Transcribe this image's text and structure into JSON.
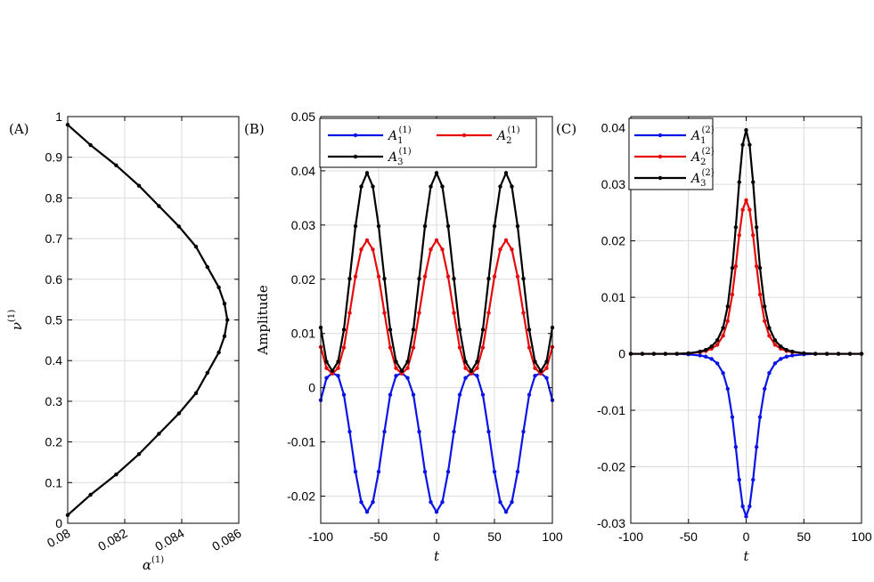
{
  "chart_data": [
    {
      "type": "line",
      "panel_label": "(A)",
      "xlabel": "α",
      "xlabel_sup": "(1)",
      "ylabel": "ν",
      "ylabel_sup": "(1)",
      "xlim": [
        0.08,
        0.086
      ],
      "ylim": [
        0,
        1
      ],
      "xticks": [
        "0.08",
        "0.082",
        "0.084",
        "0.086"
      ],
      "xtick_values": [
        0.08,
        0.082,
        0.084,
        0.086
      ],
      "yticks": [
        "0",
        "0.1",
        "0.2",
        "0.3",
        "0.4",
        "0.5",
        "0.6",
        "0.7",
        "0.8",
        "0.9",
        "1"
      ],
      "ytick_values": [
        0,
        0.1,
        0.2,
        0.3,
        0.4,
        0.5,
        0.6,
        0.7,
        0.8,
        0.9,
        1
      ],
      "grid": true,
      "series": [
        {
          "color": "#000000",
          "markers": true,
          "x": [
            0.08,
            0.0808,
            0.0817,
            0.0825,
            0.0832,
            0.0839,
            0.0845,
            0.0849,
            0.0853,
            0.0855,
            0.0856,
            0.0855,
            0.0853,
            0.0849,
            0.0845,
            0.0839,
            0.0832,
            0.0825,
            0.0817,
            0.0808,
            0.08
          ],
          "y": [
            0.02,
            0.07,
            0.12,
            0.17,
            0.22,
            0.27,
            0.32,
            0.37,
            0.42,
            0.46,
            0.5,
            0.54,
            0.58,
            0.63,
            0.68,
            0.73,
            0.78,
            0.83,
            0.88,
            0.93,
            0.98
          ]
        }
      ]
    },
    {
      "type": "line",
      "panel_label": "(B)",
      "xlabel": "t",
      "ylabel": "Amplitude",
      "xlim": [
        -100,
        100
      ],
      "ylim": [
        -0.025,
        0.05
      ],
      "xticks": [
        "-100",
        "-50",
        "0",
        "50",
        "100"
      ],
      "xtick_values": [
        -100,
        -50,
        0,
        50,
        100
      ],
      "yticks": [
        "-0.02",
        "-0.01",
        "0",
        "0.01",
        "0.02",
        "0.03",
        "0.04",
        "0.05"
      ],
      "ytick_values": [
        -0.02,
        -0.01,
        0,
        0.01,
        0.02,
        0.03,
        0.04,
        0.05
      ],
      "grid": true,
      "legend": "top",
      "series": [
        {
          "name": "A",
          "sub": "1",
          "sup": "(1)",
          "color": "#0a14e6",
          "x": [
            -100,
            -95,
            -90,
            -85,
            -80,
            -75,
            -70,
            -65,
            -60,
            -55,
            -50,
            -45,
            -40,
            -35,
            -30,
            -25,
            -20,
            -15,
            -10,
            -5,
            0,
            5,
            10,
            15,
            20,
            25,
            30,
            35,
            40,
            45,
            50,
            55,
            60,
            65,
            70,
            75,
            80,
            85,
            90,
            95,
            100
          ],
          "y": [
            -0.0023,
            0.0018,
            0.0027,
            0.0022,
            -0.0013,
            -0.0081,
            -0.0155,
            -0.0211,
            -0.0229,
            -0.0211,
            -0.0155,
            -0.0081,
            -0.0013,
            0.0022,
            0.0027,
            0.0018,
            -0.0013,
            -0.0081,
            -0.0155,
            -0.0211,
            -0.0229,
            -0.0211,
            -0.0155,
            -0.0081,
            -0.0013,
            0.0018,
            0.0027,
            0.0022,
            -0.0013,
            -0.0081,
            -0.0155,
            -0.0211,
            -0.0229,
            -0.0211,
            -0.0155,
            -0.0081,
            -0.0013,
            0.0022,
            0.0027,
            0.0018,
            -0.0023
          ]
        },
        {
          "name": "A",
          "sub": "2",
          "sup": "(1)",
          "color": "#e60a0a",
          "x": [
            -100,
            -95,
            -90,
            -85,
            -80,
            -75,
            -70,
            -65,
            -60,
            -55,
            -50,
            -45,
            -40,
            -35,
            -30,
            -25,
            -20,
            -15,
            -10,
            -5,
            0,
            5,
            10,
            15,
            20,
            25,
            30,
            35,
            40,
            45,
            50,
            55,
            60,
            65,
            70,
            75,
            80,
            85,
            90,
            95,
            100
          ],
          "y": [
            0.0075,
            0.0036,
            0.0026,
            0.0036,
            0.0074,
            0.0138,
            0.0205,
            0.0255,
            0.0272,
            0.0255,
            0.0205,
            0.0138,
            0.0074,
            0.0036,
            0.0026,
            0.0036,
            0.0074,
            0.0138,
            0.0205,
            0.0255,
            0.0272,
            0.0255,
            0.0205,
            0.0138,
            0.0074,
            0.0036,
            0.0026,
            0.0036,
            0.0074,
            0.0138,
            0.0205,
            0.0255,
            0.0272,
            0.0255,
            0.0205,
            0.0138,
            0.0074,
            0.0036,
            0.0026,
            0.0036,
            0.0075
          ]
        },
        {
          "name": "A",
          "sub": "3",
          "sup": "(1)",
          "color": "#000000",
          "x": [
            -100,
            -95,
            -90,
            -85,
            -80,
            -75,
            -70,
            -65,
            -60,
            -55,
            -50,
            -45,
            -40,
            -35,
            -30,
            -25,
            -20,
            -15,
            -10,
            -5,
            0,
            5,
            10,
            15,
            20,
            25,
            30,
            35,
            40,
            45,
            50,
            55,
            60,
            65,
            70,
            75,
            80,
            85,
            90,
            95,
            100
          ],
          "y": [
            0.0111,
            0.0048,
            0.0031,
            0.0048,
            0.0107,
            0.0201,
            0.0298,
            0.0371,
            0.0396,
            0.0371,
            0.0298,
            0.0201,
            0.0107,
            0.0048,
            0.0031,
            0.0048,
            0.0107,
            0.0201,
            0.0298,
            0.0371,
            0.0396,
            0.0371,
            0.0298,
            0.0201,
            0.0107,
            0.0048,
            0.0031,
            0.0048,
            0.0107,
            0.0201,
            0.0298,
            0.0371,
            0.0396,
            0.0371,
            0.0298,
            0.0201,
            0.0107,
            0.0048,
            0.0031,
            0.0048,
            0.0111
          ]
        }
      ]
    },
    {
      "type": "line",
      "panel_label": "(C)",
      "xlabel": "t",
      "ylabel": "",
      "xlim": [
        -100,
        100
      ],
      "ylim": [
        -0.03,
        0.042
      ],
      "xticks": [
        "-100",
        "-50",
        "0",
        "50",
        "100"
      ],
      "xtick_values": [
        -100,
        -50,
        0,
        50,
        100
      ],
      "yticks": [
        "-0.03",
        "-0.02",
        "-0.01",
        "0",
        "0.01",
        "0.02",
        "0.03",
        "0.04"
      ],
      "ytick_values": [
        -0.03,
        -0.02,
        -0.01,
        0,
        0.01,
        0.02,
        0.03,
        0.04
      ],
      "grid": true,
      "legend": "top-left",
      "series": [
        {
          "name": "A",
          "sub": "1",
          "sup": "(2)",
          "color": "#0a14e6",
          "x": [
            -100,
            -90,
            -80,
            -70,
            -60,
            -50,
            -40,
            -35,
            -30,
            -25,
            -20,
            -16,
            -12,
            -9,
            -6,
            -3,
            0,
            3,
            6,
            9,
            12,
            16,
            20,
            25,
            30,
            35,
            40,
            50,
            60,
            70,
            80,
            90,
            100
          ],
          "y": [
            0,
            0,
            0,
            0,
            0,
            -0.0001,
            -0.0003,
            -0.0005,
            -0.0009,
            -0.0017,
            -0.0034,
            -0.0062,
            -0.0112,
            -0.0165,
            -0.0223,
            -0.027,
            -0.0288,
            -0.027,
            -0.0223,
            -0.0165,
            -0.0112,
            -0.0062,
            -0.0034,
            -0.0017,
            -0.0009,
            -0.0005,
            -0.0003,
            -0.0001,
            0,
            0,
            0,
            0,
            0
          ]
        },
        {
          "name": "A",
          "sub": "2",
          "sup": "(2)",
          "color": "#e60a0a",
          "x": [
            -100,
            -90,
            -80,
            -70,
            -60,
            -50,
            -40,
            -35,
            -30,
            -25,
            -20,
            -16,
            -12,
            -9,
            -6,
            -3,
            0,
            3,
            6,
            9,
            12,
            16,
            20,
            25,
            30,
            35,
            40,
            50,
            60,
            70,
            80,
            90,
            100
          ],
          "y": [
            0,
            0,
            0,
            0,
            0,
            0.0001,
            0.0003,
            0.0005,
            0.0009,
            0.0016,
            0.0032,
            0.0058,
            0.0105,
            0.0155,
            0.021,
            0.0255,
            0.0272,
            0.0255,
            0.021,
            0.0155,
            0.0105,
            0.0058,
            0.0032,
            0.0016,
            0.0009,
            0.0005,
            0.0003,
            0.0001,
            0,
            0,
            0,
            0,
            0
          ]
        },
        {
          "name": "A",
          "sub": "3",
          "sup": "(2)",
          "color": "#000000",
          "x": [
            -100,
            -90,
            -80,
            -70,
            -60,
            -50,
            -40,
            -35,
            -30,
            -25,
            -20,
            -16,
            -12,
            -9,
            -6,
            -3,
            0,
            3,
            6,
            9,
            12,
            16,
            20,
            25,
            30,
            35,
            40,
            50,
            60,
            70,
            80,
            90,
            100
          ],
          "y": [
            0,
            0,
            0,
            0,
            0,
            0.0001,
            0.0004,
            0.0007,
            0.0013,
            0.0024,
            0.0046,
            0.0084,
            0.0152,
            0.0224,
            0.0304,
            0.037,
            0.0396,
            0.037,
            0.0304,
            0.0224,
            0.0152,
            0.0084,
            0.0046,
            0.0024,
            0.0013,
            0.0007,
            0.0004,
            0.0001,
            0,
            0,
            0,
            0,
            0
          ]
        }
      ]
    }
  ]
}
